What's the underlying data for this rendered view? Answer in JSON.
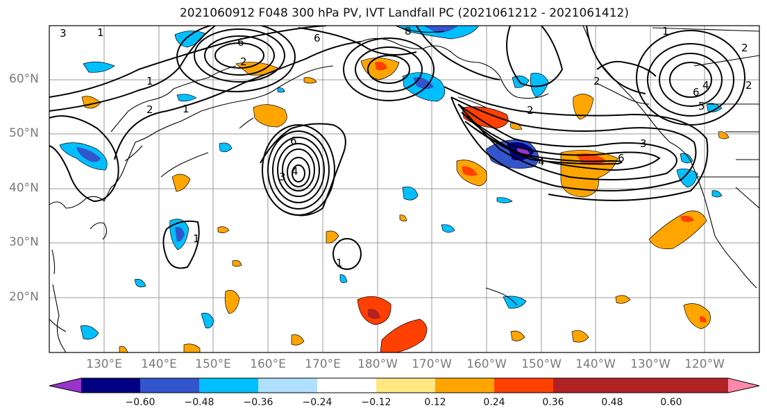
{
  "title": "2021060912 F048 300 hPa PV, IVT Landfall PC (2021061212 - 2021061412)",
  "latitude_labels": [
    "60°N",
    "50°N",
    "40°N",
    "30°N",
    "20°N"
  ],
  "longitude_labels": [
    "130°E",
    "140°E",
    "150°E",
    "160°E",
    "170°E",
    "180°W",
    "170°W",
    "160°W",
    "150°W",
    "140°W",
    "130°W",
    "120°W"
  ],
  "contour_labels": [
    "3",
    "1",
    "6",
    "6",
    "8",
    "2",
    "1",
    "1",
    "6",
    "4",
    "3",
    "2",
    "1",
    "2",
    "4",
    "2",
    "2",
    "4",
    "5",
    "6",
    "1",
    "3",
    "2",
    "6",
    "1"
  ],
  "colorbar": {
    "tick_labels": [
      "−0.60",
      "−0.48",
      "−0.36",
      "−0.24",
      "−0.12",
      "0.12",
      "0.24",
      "0.36",
      "0.48",
      "0.60"
    ],
    "colors": [
      "#9933cc",
      "#000080",
      "#3355cc",
      "#00bfff",
      "#b0e0ff",
      "#ffffff",
      "#ffe882",
      "#ffa500",
      "#ff4000",
      "#b22222",
      "#ff88aa"
    ]
  },
  "colors": {
    "grid": "#9a9a9a",
    "coastline": "#000000",
    "contour": "#000000",
    "negative_strong": "#3355cc",
    "negative_medium": "#00bfff",
    "negative_weak": "#b0e0ff",
    "positive_weak": "#ffe882",
    "positive_medium": "#ffa500",
    "positive_strong": "#ff4000",
    "positive_extreme": "#b22222"
  }
}
